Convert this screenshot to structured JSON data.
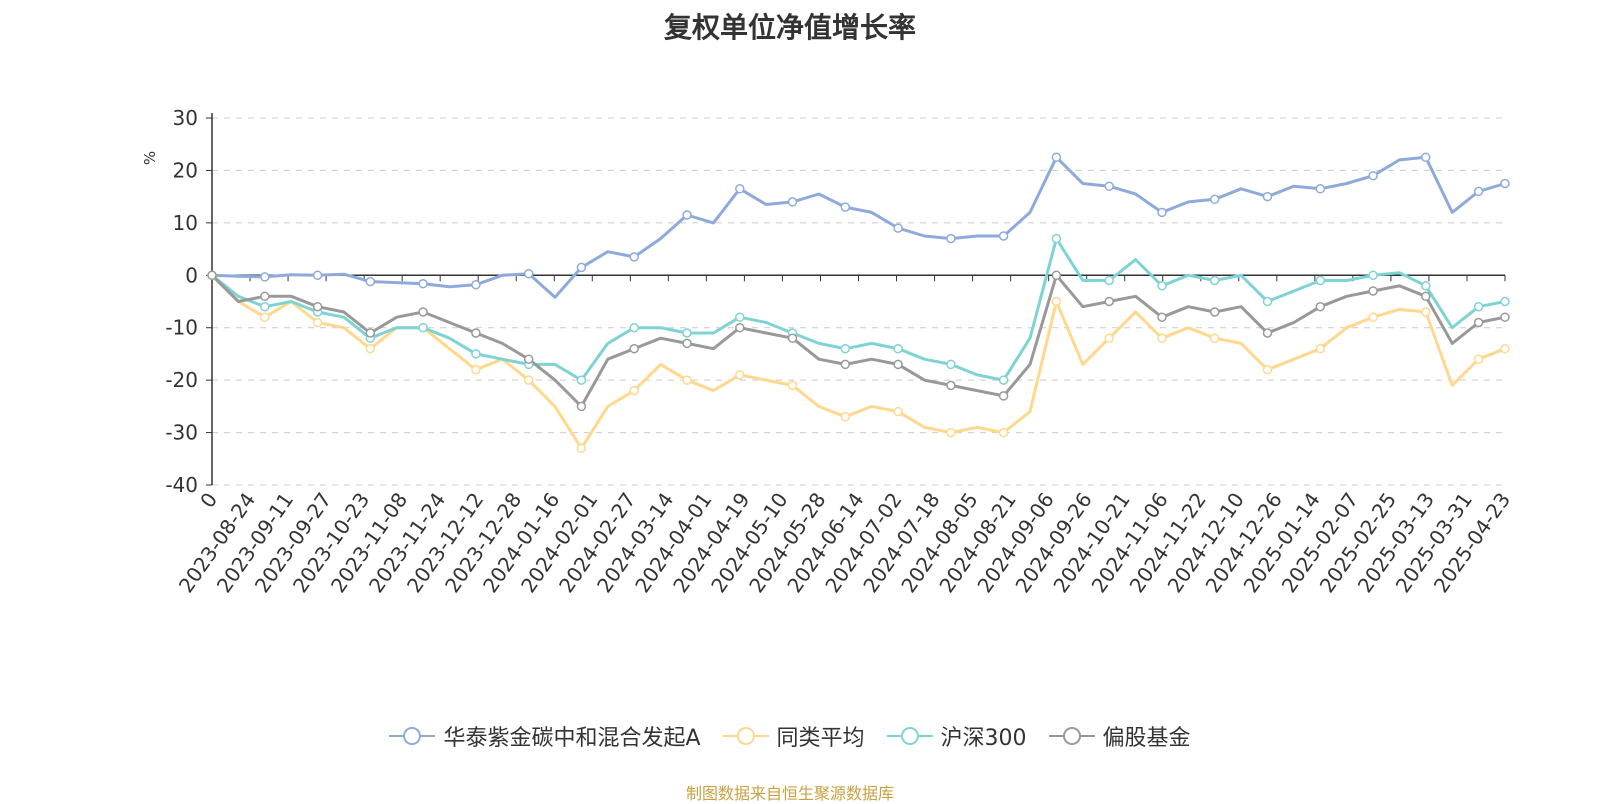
{
  "chart_data": {
    "type": "line",
    "title": "复权单位净值增长率",
    "ylabel": "%",
    "xlabel": "",
    "ylim": [
      -40,
      30
    ],
    "yticks": [
      "30",
      "20",
      "10",
      "0",
      "-10",
      "-20",
      "-30",
      "-40"
    ],
    "x_ticks": [
      "0",
      "2023-08-24",
      "2023-09-11",
      "2023-09-27",
      "2023-10-23",
      "2023-11-08",
      "2023-11-24",
      "2023-12-12",
      "2023-12-28",
      "2024-01-16",
      "2024-02-01",
      "2024-02-27",
      "2024-03-14",
      "2024-04-01",
      "2024-04-19",
      "2024-05-10",
      "2024-05-28",
      "2024-06-14",
      "2024-07-02",
      "2024-07-18",
      "2024-08-05",
      "2024-08-21",
      "2024-09-06",
      "2024-09-26",
      "2024-10-21",
      "2024-11-06",
      "2024-11-22",
      "2024-12-10",
      "2024-12-26",
      "2025-01-14",
      "2025-02-07",
      "2025-02-25",
      "2025-03-13",
      "2025-03-31",
      "2025-04-23"
    ],
    "grid": true,
    "legend_position": "bottom",
    "series": [
      {
        "name": "华泰紫金碳中和混合发起A",
        "color": "#8eaadb",
        "values": [
          0,
          -0.2,
          -0.3,
          0.1,
          0,
          0.2,
          -1.2,
          -1.4,
          -1.6,
          -2.2,
          -1.8,
          0,
          0.3,
          -4.2,
          1.5,
          4.5,
          3.5,
          7,
          11.5,
          10,
          16.5,
          13.5,
          14,
          15.5,
          13,
          12,
          9,
          7.5,
          7,
          7.5,
          7.5,
          12,
          22.5,
          17.5,
          17,
          15.5,
          12,
          14,
          14.5,
          16.5,
          15,
          17,
          16.5,
          17.5,
          19,
          22,
          22.5,
          12,
          16,
          17.5
        ]
      },
      {
        "name": "同类平均",
        "color": "#ffd88e",
        "values": [
          0,
          -5,
          -8,
          -5,
          -9,
          -10,
          -14,
          -10,
          -10,
          -14,
          -18,
          -16,
          -20,
          -25,
          -33,
          -25,
          -22,
          -17,
          -20,
          -22,
          -19,
          -20,
          -21,
          -25,
          -27,
          -25,
          -26,
          -29,
          -30,
          -29,
          -30,
          -26,
          -5,
          -17,
          -12,
          -7,
          -12,
          -10,
          -12,
          -13,
          -18,
          -16,
          -14,
          -10,
          -8,
          -6.5,
          -7,
          -21,
          -16,
          -14
        ]
      },
      {
        "name": "沪深300",
        "color": "#7ed3d4",
        "values": [
          0,
          -4,
          -6,
          -5,
          -7,
          -8,
          -12,
          -10,
          -10,
          -12,
          -15,
          -16,
          -17,
          -17,
          -20,
          -13,
          -10,
          -10,
          -11,
          -11,
          -8,
          -9,
          -11,
          -13,
          -14,
          -13,
          -14,
          -16,
          -17,
          -19,
          -20,
          -12,
          7,
          -1,
          -1,
          3,
          -2,
          0,
          -1,
          0,
          -5,
          -3,
          -1,
          -1,
          0,
          0.5,
          -2,
          -10,
          -6,
          -5
        ]
      },
      {
        "name": "偏股基金",
        "color": "#999999",
        "values": [
          0,
          -5,
          -4,
          -4,
          -6,
          -7,
          -11,
          -8,
          -7,
          -9,
          -11,
          -13,
          -16,
          -20,
          -25,
          -16,
          -14,
          -12,
          -13,
          -14,
          -10,
          -11,
          -12,
          -16,
          -17,
          -16,
          -17,
          -20,
          -21,
          -22,
          -23,
          -17,
          0,
          -6,
          -5,
          -4,
          -8,
          -6,
          -7,
          -6,
          -11,
          -9,
          -6,
          -4,
          -3,
          -2,
          -4,
          -13,
          -9,
          -8
        ]
      }
    ]
  },
  "source_note": "制图数据来自恒生聚源数据库"
}
